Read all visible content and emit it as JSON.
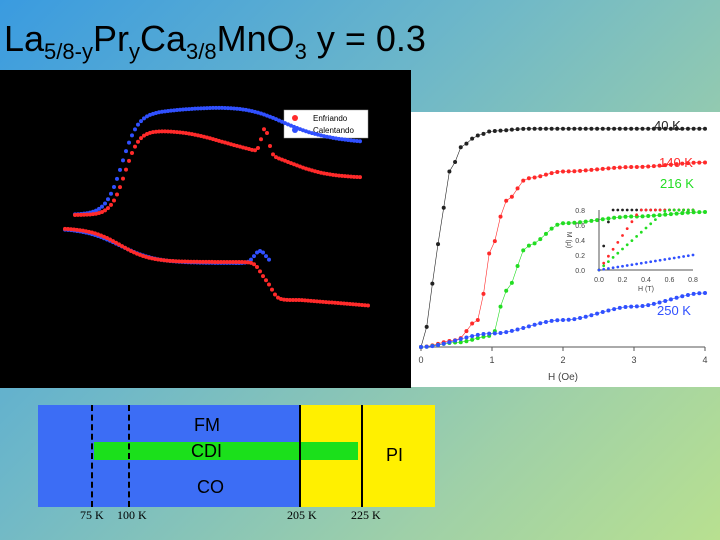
{
  "title": {
    "base": "La",
    "sub1": "5/8-y",
    "mid": "Pr",
    "sub2": "y",
    "mid2": "Ca",
    "sub3": "3/8",
    "tail": "MnO",
    "sub4": "3",
    "suffix": " y = 0.3"
  },
  "left_plot": {
    "legend": [
      "Enfriando",
      "Calentando"
    ],
    "series_colors": {
      "Enfriando": "#ff2a2a",
      "Calentando": "#3050ff"
    }
  },
  "chart_data": {
    "type": "line",
    "title": "",
    "xlabel": "H (Oe)",
    "xticks": [
      0,
      1,
      2,
      3,
      4
    ],
    "xlim": [
      0,
      4
    ],
    "ylim": [
      0,
      1.0
    ],
    "series": [
      {
        "name": "40 K",
        "color": "#222222",
        "x": [
          0,
          0.1,
          0.2,
          0.3,
          0.4,
          0.6,
          0.8,
          1.0,
          1.5,
          2.0,
          3.0,
          4.0
        ],
        "y": [
          0.0,
          0.1,
          0.38,
          0.6,
          0.78,
          0.9,
          0.94,
          0.96,
          0.97,
          0.97,
          0.97,
          0.97
        ]
      },
      {
        "name": "140 K",
        "color": "#ff2a2a",
        "x": [
          0,
          0.5,
          0.8,
          1.0,
          1.2,
          1.5,
          2.0,
          3.0,
          4.0
        ],
        "y": [
          0.0,
          0.03,
          0.12,
          0.45,
          0.65,
          0.75,
          0.78,
          0.8,
          0.82
        ]
      },
      {
        "name": "216 K",
        "color": "#22dd22",
        "x": [
          0,
          0.5,
          1.0,
          1.2,
          1.5,
          2.0,
          3.0,
          4.0
        ],
        "y": [
          0.0,
          0.02,
          0.05,
          0.25,
          0.45,
          0.55,
          0.58,
          0.6
        ]
      },
      {
        "name": "250 K",
        "color": "#3050ff",
        "x": [
          0,
          1.0,
          2.0,
          3.0,
          4.0
        ],
        "y": [
          0.0,
          0.06,
          0.12,
          0.18,
          0.24
        ]
      }
    ],
    "inset": {
      "xlabel": "H (T)",
      "ylabel": "M (μ)",
      "xticks": [
        "0.0",
        "0.2",
        "0.4",
        "0.6",
        "0.8"
      ],
      "yticks": [
        "0.0",
        "0.2",
        "0.4",
        "0.6",
        "0.8"
      ]
    }
  },
  "phase_diagram": {
    "labels": {
      "fm": "FM",
      "cdi": "CDI",
      "pi": "PI",
      "co": "CO"
    },
    "temperatures": [
      "75 K",
      "100 K",
      "205 K",
      "225 K"
    ]
  }
}
